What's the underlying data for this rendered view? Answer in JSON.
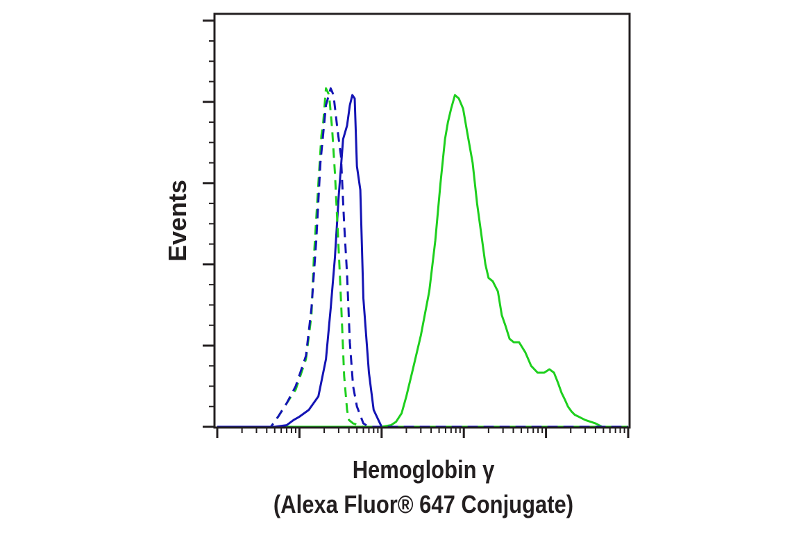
{
  "chart_data": {
    "type": "line",
    "title": "",
    "xlabel_line1": "Hemoglobin γ",
    "xlabel_line2": "(Alexa Fluor® 647 Conjugate)",
    "ylabel": "Events",
    "x_scale": "log",
    "xlim": [
      1,
      100000
    ],
    "ylim": [
      0,
      120
    ],
    "grid": false,
    "legend": "none",
    "series": [
      {
        "color": "#1ecf1e",
        "style": "solid",
        "x": [
          1,
          100,
          130,
          150,
          175,
          200,
          240,
          300,
          380,
          450,
          520,
          590,
          640,
          700,
          780,
          870,
          980,
          1100,
          1280,
          1450,
          1650,
          1830,
          2000,
          2250,
          2600,
          2900,
          3200,
          3600,
          4050,
          4700,
          5600,
          6600,
          7900,
          9500,
          11000,
          12500,
          14000,
          15500,
          17000,
          18500,
          20500,
          22500,
          25000,
          30000,
          40000,
          48000,
          55000,
          100000
        ],
        "y": [
          0,
          0,
          0.5,
          1.5,
          4,
          9,
          17,
          27,
          40,
          55,
          72,
          85,
          90,
          94,
          98,
          97,
          94,
          87,
          78,
          66,
          56,
          48,
          44,
          43,
          40,
          33,
          30,
          26,
          25,
          25,
          22,
          18,
          16,
          16,
          17,
          16,
          13,
          10,
          8,
          6,
          4.5,
          3.5,
          3,
          2,
          1,
          0,
          0,
          0
        ]
      },
      {
        "color": "#1414b4",
        "style": "solid",
        "x": [
          1,
          5,
          7,
          8.5,
          10,
          13,
          17,
          21,
          24,
          27,
          30,
          34,
          38,
          41,
          44,
          47,
          50,
          55,
          60,
          70,
          80,
          100,
          100000
        ],
        "y": [
          0,
          0,
          0.5,
          2,
          3,
          5,
          9,
          20,
          35,
          50,
          68,
          85,
          89,
          95,
          98,
          97,
          77,
          70,
          38,
          16,
          5,
          0,
          0
        ]
      },
      {
        "color": "#1ecf1e",
        "style": "dashed",
        "x": [
          1,
          4.5,
          5.5,
          7,
          9,
          12,
          14,
          15,
          17,
          18.5,
          19.5,
          21,
          23,
          25,
          27,
          29,
          31,
          33,
          35,
          38,
          40,
          45,
          60,
          100000
        ],
        "y": [
          0,
          0,
          3,
          7,
          11,
          20,
          33,
          50,
          72,
          86,
          90,
          100,
          98,
          88,
          75,
          60,
          45,
          30,
          15,
          5,
          2,
          1,
          0,
          0
        ]
      },
      {
        "color": "#1414b4",
        "style": "dashed",
        "x": [
          1,
          4.5,
          5.5,
          7,
          9,
          12,
          14,
          16,
          18,
          21,
          24,
          26,
          29,
          32,
          35,
          38,
          41,
          45,
          50,
          60,
          70,
          100000
        ],
        "y": [
          0,
          0,
          3,
          7,
          12,
          21,
          35,
          55,
          78,
          95,
          100,
          98,
          88,
          80,
          60,
          45,
          25,
          12,
          6,
          1,
          0,
          0
        ]
      }
    ]
  }
}
